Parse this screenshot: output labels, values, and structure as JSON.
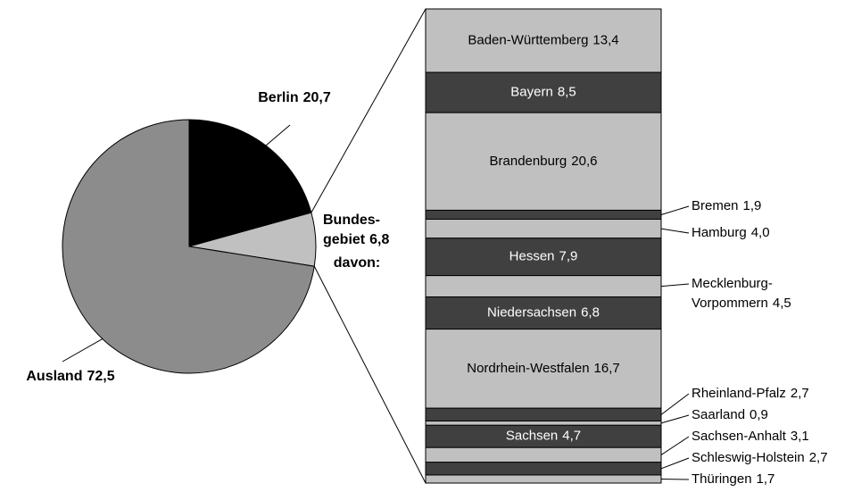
{
  "chart_data": [
    {
      "type": "pie",
      "categories": [
        "Berlin",
        "Bundes-\ngebiet",
        "Ausland"
      ],
      "values": [
        20.7,
        6.8,
        72.5
      ],
      "value_labels": [
        "20,7",
        "6,8",
        "72,5"
      ],
      "colors": [
        "#000000",
        "#c0c0c0",
        "#8c8c8c"
      ],
      "annotation": "davon:"
    },
    {
      "type": "stacked-bar",
      "categories": [
        "Baden-Württemberg",
        "Bayern",
        "Brandenburg",
        "Bremen",
        "Hamburg",
        "Hessen",
        "Mecklenburg-\nVorpommern",
        "Niedersachsen",
        "Nordrhein-Westfalen",
        "Rheinland-Pfalz",
        "Saarland",
        "Sachsen",
        "Sachsen-Anhalt",
        "Schleswig-Holstein",
        "Thüringen"
      ],
      "values": [
        13.4,
        8.5,
        20.6,
        1.9,
        4.0,
        7.9,
        4.5,
        6.8,
        16.7,
        2.7,
        0.9,
        4.7,
        3.1,
        2.7,
        1.7
      ],
      "value_labels": [
        "13,4",
        "8,5",
        "20,6",
        "1,9",
        "4,0",
        "7,9",
        "4,5",
        "6,8",
        "16,7",
        "2,7",
        "0,9",
        "4,7",
        "3,1",
        "2,7",
        "1,7"
      ],
      "colors": [
        "#c0c0c0",
        "#404040",
        "#c0c0c0",
        "#404040",
        "#c0c0c0",
        "#404040",
        "#c0c0c0",
        "#404040",
        "#c0c0c0",
        "#404040",
        "#c0c0c0",
        "#404040",
        "#c0c0c0",
        "#404040",
        "#c0c0c0"
      ]
    }
  ]
}
